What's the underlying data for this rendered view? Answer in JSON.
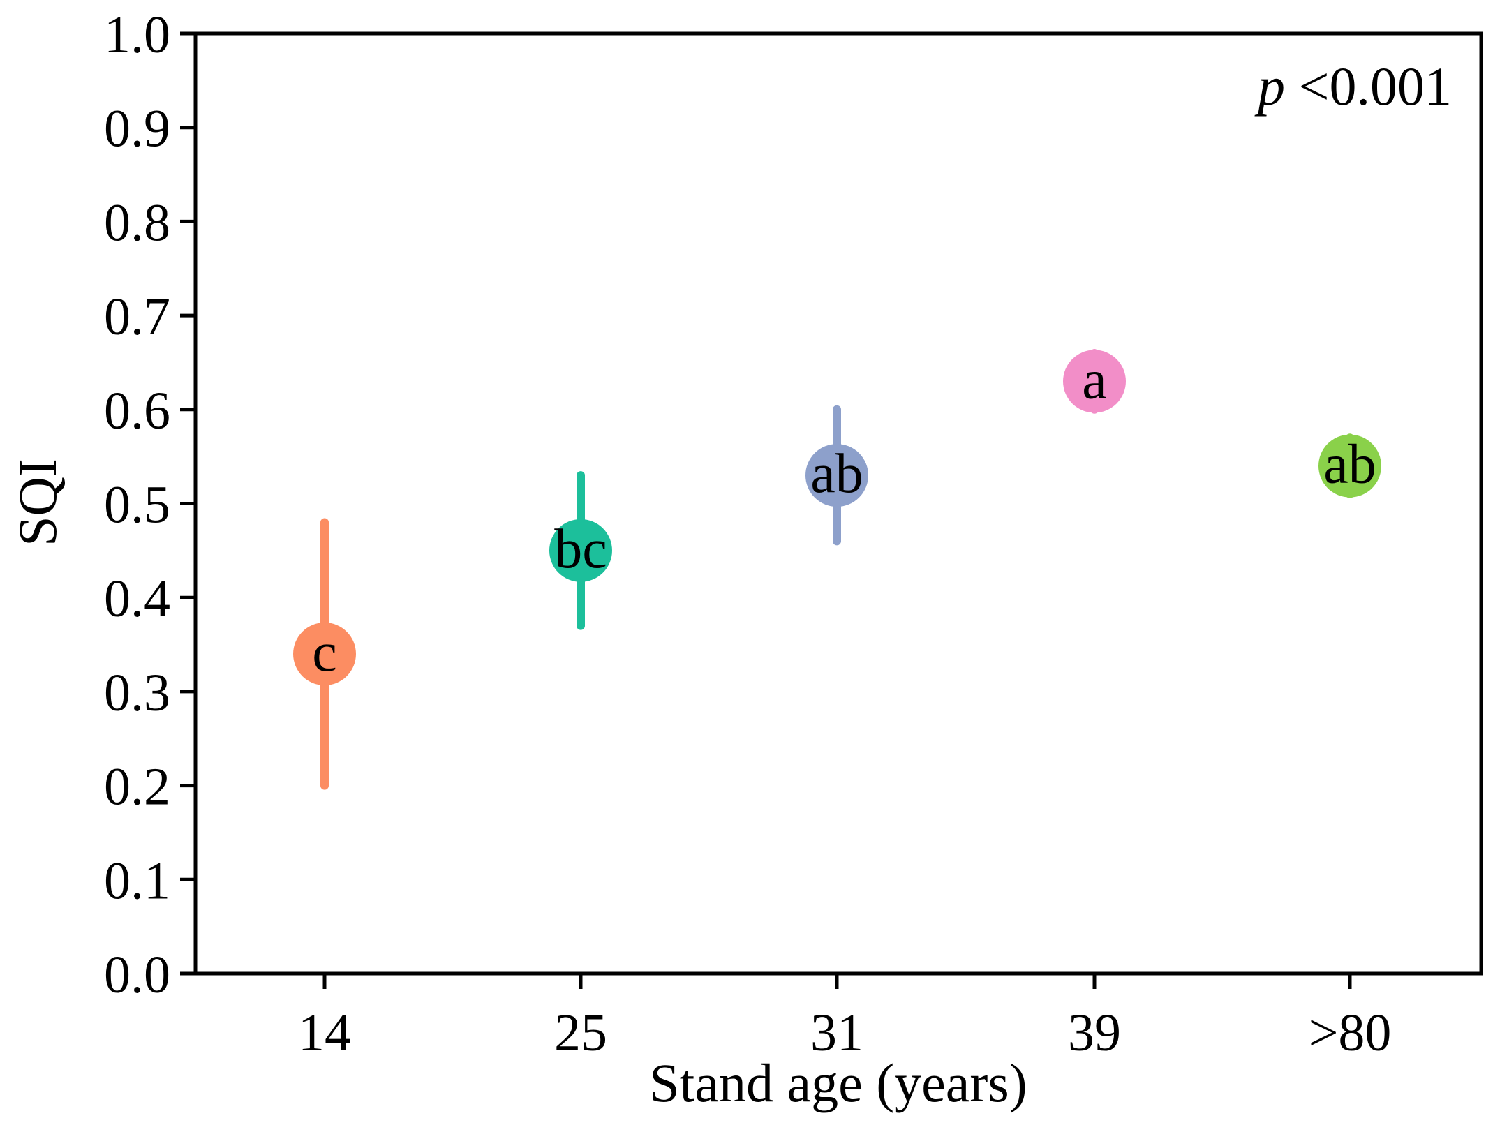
{
  "chart_data": {
    "type": "scatter",
    "title": "",
    "xlabel": "Stand age (years)",
    "ylabel": "SQI",
    "categories": [
      "14",
      "25",
      "31",
      "39",
      ">80"
    ],
    "series": [
      {
        "name": "SQI",
        "values": [
          0.34,
          0.45,
          0.53,
          0.63,
          0.54
        ],
        "error_low": [
          0.2,
          0.37,
          0.46,
          0.6,
          0.51
        ],
        "error_high": [
          0.48,
          0.53,
          0.6,
          0.66,
          0.57
        ],
        "significance_letters": [
          "c",
          "bc",
          "ab",
          "a",
          "ab"
        ],
        "colors": [
          "#fc8d62",
          "#1cbf9b",
          "#8da0cb",
          "#f28ec8",
          "#8ad14a"
        ]
      }
    ],
    "ylim": [
      0.0,
      1.0
    ],
    "yticks": [
      "0.0",
      "0.1",
      "0.2",
      "0.3",
      "0.4",
      "0.5",
      "0.6",
      "0.7",
      "0.8",
      "0.9",
      "1.0"
    ],
    "grid": false,
    "annotation": {
      "italic": "p",
      "text": " <0.001",
      "placement": "top-right"
    }
  }
}
